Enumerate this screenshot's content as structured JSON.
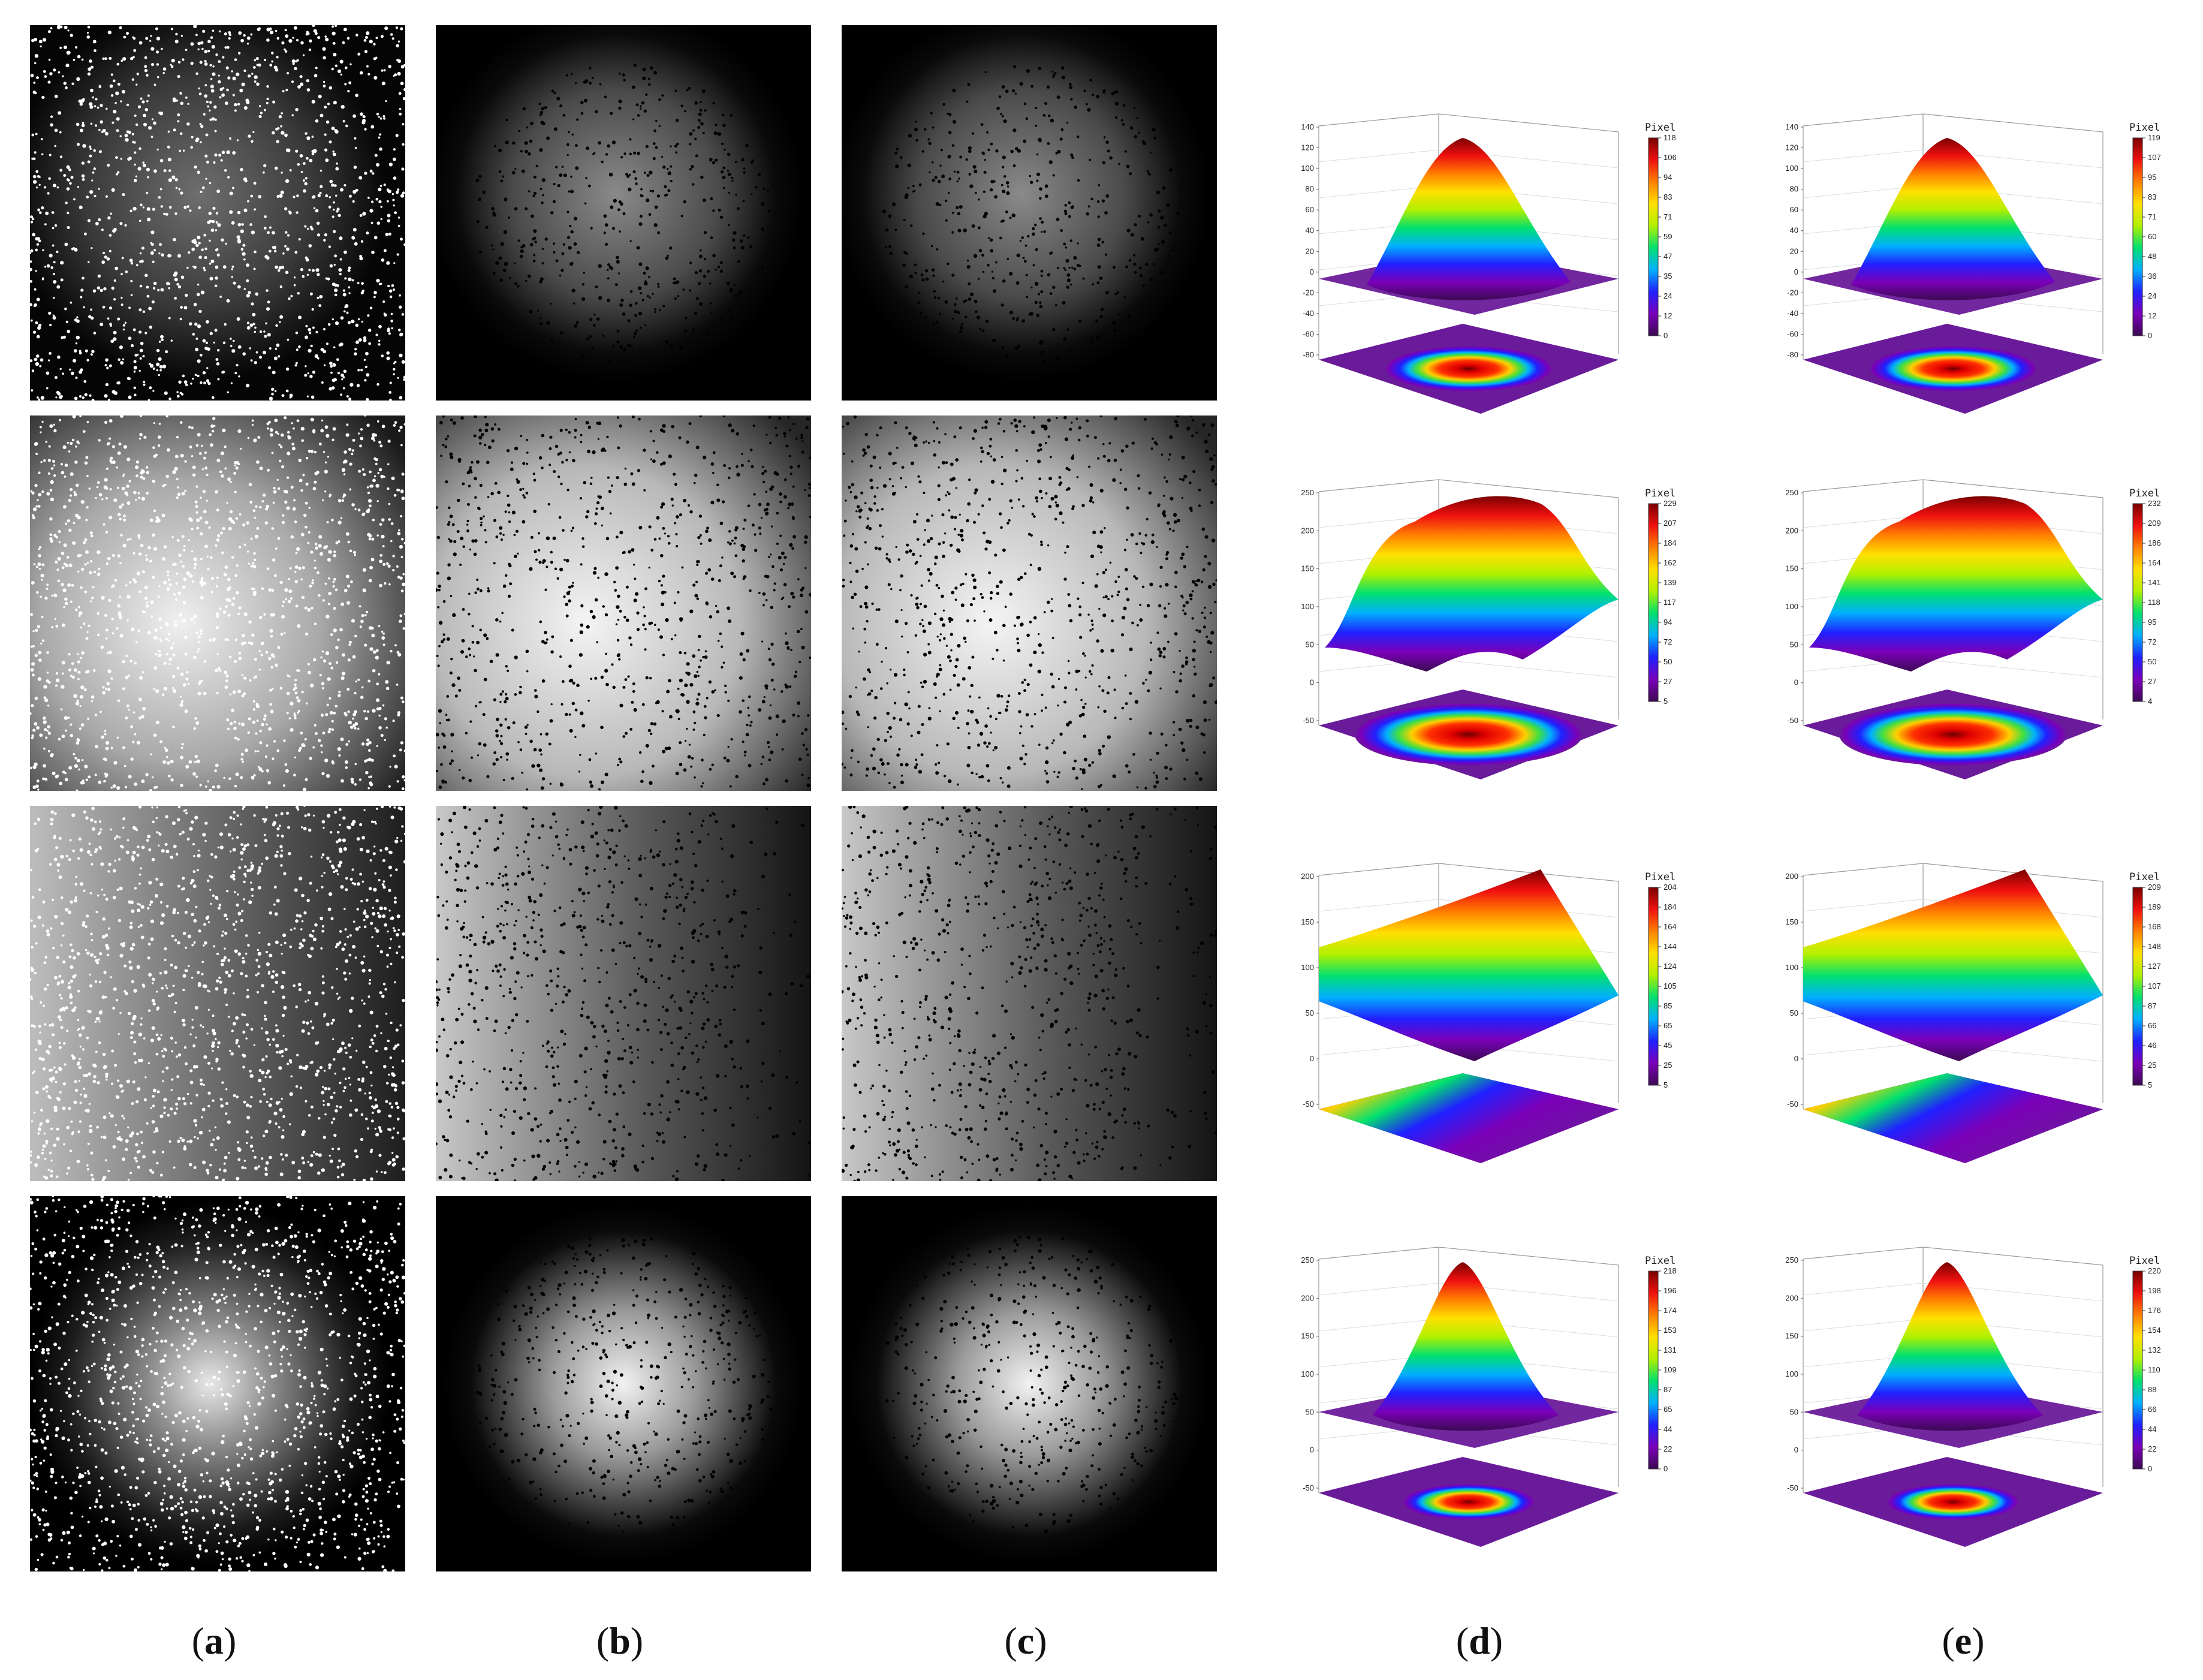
{
  "figure": {
    "subfigure_labels": [
      {
        "id": "a",
        "text": "a"
      },
      {
        "id": "b",
        "text": "b"
      },
      {
        "id": "c",
        "text": "c"
      },
      {
        "id": "d",
        "text": "d"
      },
      {
        "id": "e",
        "text": "e"
      }
    ],
    "rows": [
      {
        "name": "row-1",
        "shape": "circular-offset-dim"
      },
      {
        "name": "row-2",
        "shape": "broad-bright"
      },
      {
        "name": "row-3",
        "shape": "left-gradient"
      },
      {
        "name": "row-4",
        "shape": "circular-center"
      }
    ],
    "colors": {
      "rainbow": [
        "#3b0a52",
        "#7a00b8",
        "#2020ff",
        "#00b0ff",
        "#00e070",
        "#b0f000",
        "#ffe000",
        "#ff8000",
        "#f01010",
        "#7a0000"
      ],
      "plane": "#6a1b9a",
      "dots_white": "#ffffff",
      "dots_black": "#000000"
    },
    "colorbar_title": "Pixel",
    "plots": [
      {
        "name": "plot-d1",
        "zticks": [
          "140",
          "120",
          "100",
          "80",
          "60",
          "40",
          "20",
          "0",
          "-20",
          "-40",
          "-60",
          "-80"
        ],
        "colorbar": [
          "118",
          "106",
          "94",
          "83",
          "71",
          "59",
          "47",
          "35",
          "24",
          "12",
          "0"
        ],
        "shape": "cone"
      },
      {
        "name": "plot-e1",
        "zticks": [
          "140",
          "120",
          "100",
          "80",
          "60",
          "40",
          "20",
          "0",
          "-20",
          "-40",
          "-60",
          "-80"
        ],
        "colorbar": [
          "119",
          "107",
          "95",
          "83",
          "71",
          "60",
          "48",
          "36",
          "24",
          "12",
          "0"
        ],
        "shape": "cone"
      },
      {
        "name": "plot-d2",
        "zticks": [
          "250",
          "200",
          "150",
          "100",
          "50",
          "0",
          "-50"
        ],
        "colorbar": [
          "229",
          "207",
          "184",
          "162",
          "139",
          "117",
          "94",
          "72",
          "50",
          "27",
          "5"
        ],
        "shape": "dome"
      },
      {
        "name": "plot-e2",
        "zticks": [
          "250",
          "200",
          "150",
          "100",
          "50",
          "0",
          "-50"
        ],
        "colorbar": [
          "232",
          "209",
          "186",
          "164",
          "141",
          "118",
          "95",
          "72",
          "50",
          "27",
          "4"
        ],
        "shape": "dome"
      },
      {
        "name": "plot-d3",
        "zticks": [
          "200",
          "150",
          "100",
          "50",
          "0",
          "-50"
        ],
        "colorbar": [
          "204",
          "184",
          "164",
          "144",
          "124",
          "105",
          "85",
          "65",
          "45",
          "25",
          "5"
        ],
        "shape": "slope"
      },
      {
        "name": "plot-e3",
        "zticks": [
          "200",
          "150",
          "100",
          "50",
          "0",
          "-50"
        ],
        "colorbar": [
          "209",
          "189",
          "168",
          "148",
          "127",
          "107",
          "87",
          "66",
          "46",
          "25",
          "5"
        ],
        "shape": "slope"
      },
      {
        "name": "plot-d4",
        "zticks": [
          "250",
          "200",
          "150",
          "100",
          "50",
          "0",
          "-50"
        ],
        "colorbar": [
          "218",
          "196",
          "174",
          "153",
          "131",
          "109",
          "87",
          "65",
          "44",
          "22",
          "0"
        ],
        "shape": "peak"
      },
      {
        "name": "plot-e4",
        "zticks": [
          "250",
          "200",
          "150",
          "100",
          "50",
          "0",
          "-50"
        ],
        "colorbar": [
          "220",
          "198",
          "176",
          "154",
          "132",
          "110",
          "88",
          "66",
          "44",
          "22",
          "0"
        ],
        "shape": "peak"
      }
    ]
  }
}
